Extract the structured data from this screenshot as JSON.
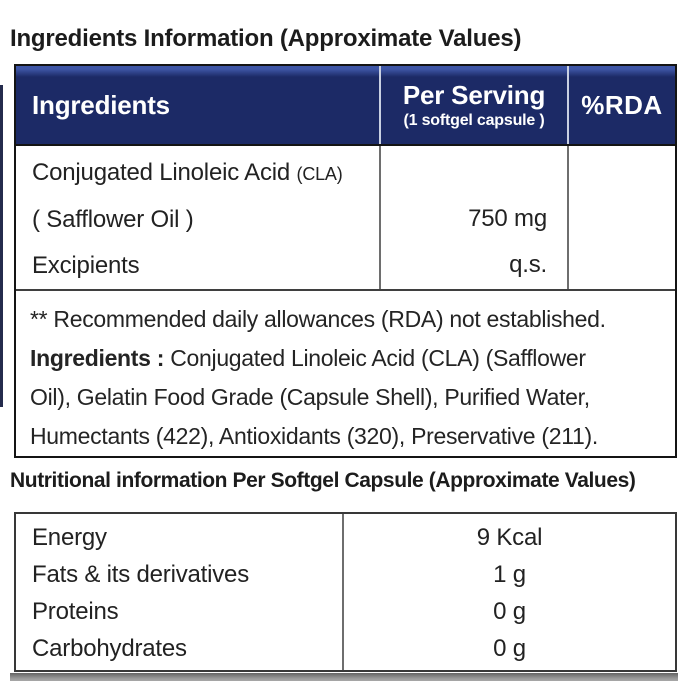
{
  "label": {
    "section1_title": "Ingredients Information (Approximate Values)",
    "section2_title": "Nutritional information Per Softgel Capsule (Approximate Values)"
  },
  "colors": {
    "header_bg": "#1c2a66",
    "header_highlight": "#3e56a6",
    "header_text": "#ffffff",
    "body_text": "#222222",
    "table_border": "#141414",
    "bottom_strip": "#8d8d8d"
  },
  "ingredients_table": {
    "header": {
      "col1": "Ingredients",
      "col2_main": "Per Serving",
      "col2_sub": "(1 softgel capsule )",
      "col3": "%RDA"
    },
    "row": {
      "name_main": "Conjugated Linoleic Acid ",
      "name_small": "(CLA)",
      "name_line2": "( Safflower Oil )",
      "name_line3": "Excipients",
      "value_line2": "750 mg",
      "value_line3": "q.s.",
      "rda": ""
    },
    "footnote": {
      "line1": "** Recommended daily allowances (RDA) not established.",
      "line2_bold": "Ingredients :",
      "line2_rest": " Conjugated Linoleic Acid (CLA) (Safflower",
      "line3": "Oil), Gelatin Food Grade (Capsule Shell), Purified Water,",
      "line4": "Humectants (422), Antioxidants (320), Preservative (211)."
    }
  },
  "nutrition_table": {
    "rows": [
      {
        "label": "Energy",
        "value": "9 Kcal"
      },
      {
        "label": "Fats & its derivatives",
        "value": "1 g"
      },
      {
        "label": "Proteins",
        "value": "0 g"
      },
      {
        "label": "Carbohydrates",
        "value": "0 g"
      }
    ]
  }
}
